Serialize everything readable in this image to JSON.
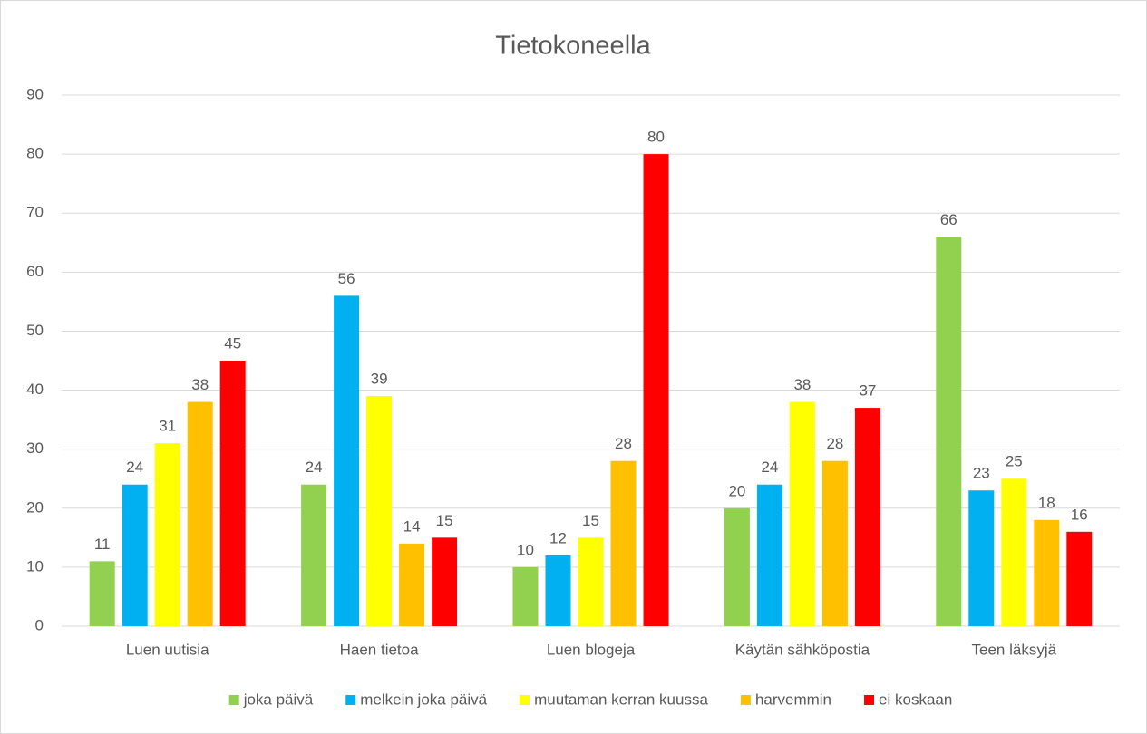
{
  "chart_data": {
    "type": "bar",
    "title": "Tietokoneella",
    "categories": [
      "Luen uutisia",
      "Haen tietoa",
      "Luen blogeja",
      "Käytän sähköpostia",
      "Teen läksyjä"
    ],
    "series": [
      {
        "name": "joka päivä",
        "color": "#92d050",
        "values": [
          11,
          24,
          10,
          20,
          66
        ]
      },
      {
        "name": "melkein joka päivä",
        "color": "#00b0f0",
        "values": [
          24,
          56,
          12,
          24,
          23
        ]
      },
      {
        "name": "muutaman kerran kuussa",
        "color": "#ffff00",
        "values": [
          31,
          39,
          15,
          38,
          25
        ]
      },
      {
        "name": "harvemmin",
        "color": "#ffc000",
        "values": [
          38,
          14,
          28,
          28,
          18
        ]
      },
      {
        "name": "ei koskaan",
        "color": "#ff0000",
        "values": [
          45,
          15,
          80,
          37,
          16
        ]
      }
    ],
    "ylim": [
      0,
      90
    ],
    "yticks": [
      0,
      10,
      20,
      30,
      40,
      50,
      60,
      70,
      80,
      90
    ],
    "grid": true,
    "legend": "bottom"
  }
}
